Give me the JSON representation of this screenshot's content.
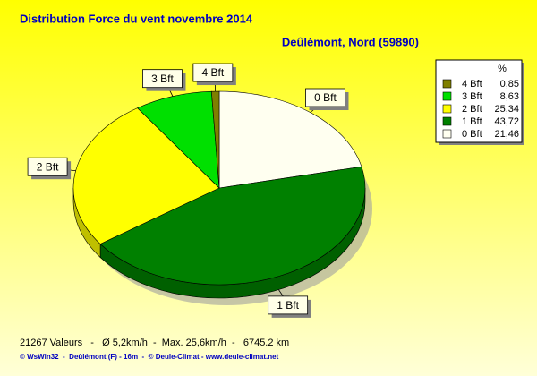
{
  "chart_data": {
    "type": "pie",
    "title": "Distribution Force du vent  novembre 2014",
    "subtitle": "Deûlémont, Nord (59890)",
    "categories": [
      "0 Bft",
      "1 Bft",
      "2 Bft",
      "3 Bft",
      "4 Bft"
    ],
    "values": [
      21.46,
      43.72,
      25.34,
      8.63,
      0.85
    ],
    "value_labels": [
      "21,46",
      "43,72",
      "25,34",
      "8,63",
      "0,85"
    ],
    "colors": [
      "#fffff0",
      "#008000",
      "#ffff00",
      "#00e000",
      "#7f7f00"
    ],
    "legend_title": "%",
    "legend": "upper right",
    "footer": [
      "21267 Valeurs   -   Ø 5,2km/h  -  Max. 25,6km/h  -   6745.2 km",
      "© WsWin32  -  Deûlémont (F) - 16m  -  © Deule-Climat - www.deule-climat.net"
    ]
  }
}
